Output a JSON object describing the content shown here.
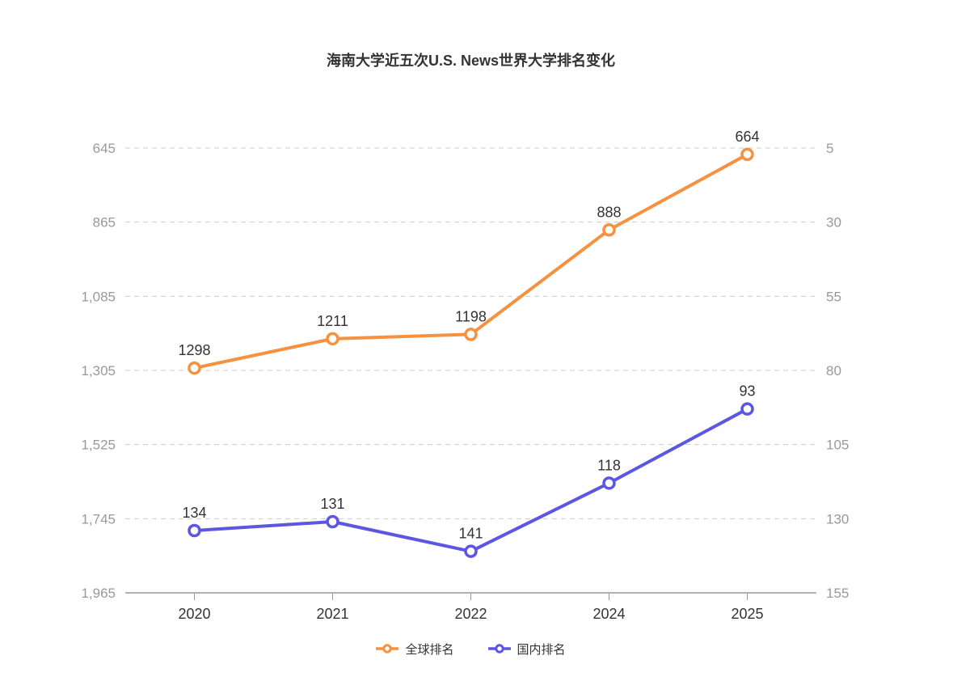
{
  "chart_data": {
    "type": "line",
    "title": "海南大学近五次U.S. News世界大学排名变化",
    "categories": [
      "2020",
      "2021",
      "2022",
      "2024",
      "2025"
    ],
    "series": [
      {
        "id": "global",
        "name": "全球排名",
        "axis": "left",
        "color": "#F6923F",
        "marker": "hollow-circle",
        "values": [
          1298,
          1211,
          1198,
          888,
          664
        ]
      },
      {
        "id": "domestic",
        "name": "国内排名",
        "axis": "right",
        "color": "#5B57E3",
        "marker": "hollow-circle",
        "values": [
          134,
          131,
          141,
          118,
          93
        ]
      }
    ],
    "left_axis": {
      "min": 645,
      "max": 1965,
      "tick_labels": [
        "645",
        "865",
        "1,085",
        "1,305",
        "1,525",
        "1,745",
        "1,965"
      ]
    },
    "right_axis": {
      "min": 5,
      "max": 155,
      "tick_labels": [
        "5",
        "30",
        "55",
        "80",
        "105",
        "130",
        "155"
      ]
    },
    "grid": {
      "horizontal_dashed": true,
      "color": "#cccccc"
    },
    "axis_line_color": "#999999",
    "axis_label_color": "#999999",
    "x_label_color": "#333333",
    "data_label_color": "#333333",
    "background": "#ffffff",
    "legend_position": "bottom"
  }
}
